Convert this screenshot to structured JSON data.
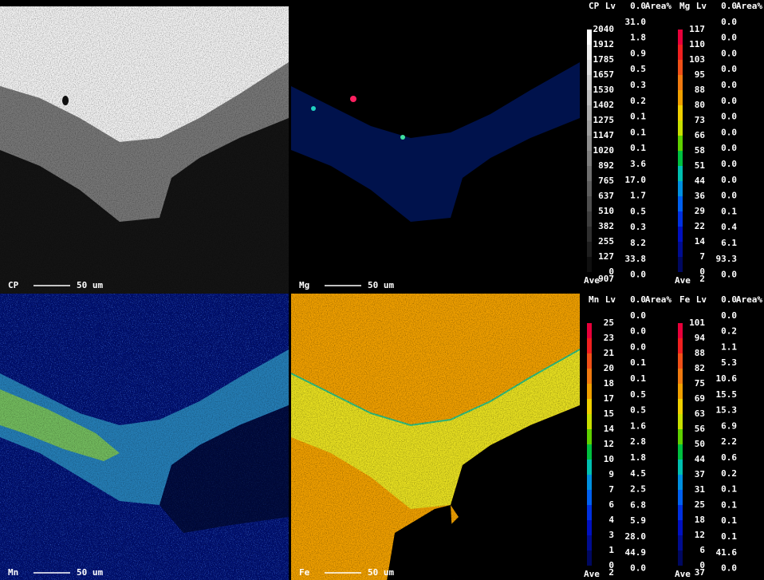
{
  "panels": [
    {
      "label": "CP",
      "scale_bar": "50 um"
    },
    {
      "label": "Mg",
      "scale_bar": "50 um"
    },
    {
      "label": "Mn",
      "scale_bar": "50 um"
    },
    {
      "label": "Fe",
      "scale_bar": "50 um"
    }
  ],
  "scales": [
    {
      "element": "CP",
      "lv_header": "Lv",
      "area_header": "Area%",
      "levels": [
        2040,
        1912,
        1785,
        1657,
        1530,
        1402,
        1275,
        1147,
        1020,
        892,
        765,
        637,
        510,
        382,
        255,
        127,
        0
      ],
      "area": [
        "0.0",
        "31.0",
        "1.8",
        "0.9",
        "0.5",
        "0.3",
        "0.2",
        "0.1",
        "0.1",
        "0.1",
        "3.6",
        "17.0",
        "1.7",
        "0.5",
        "0.3",
        "8.2",
        "33.8",
        "0.0"
      ],
      "ave_label": "Ave",
      "ave": 907
    },
    {
      "element": "Mg",
      "lv_header": "Lv",
      "area_header": "Area%",
      "levels": [
        117,
        110,
        103,
        95,
        88,
        80,
        73,
        66,
        58,
        51,
        44,
        36,
        29,
        22,
        14,
        7,
        0
      ],
      "area": [
        "0.0",
        "0.0",
        "0.0",
        "0.0",
        "0.0",
        "0.0",
        "0.0",
        "0.0",
        "0.0",
        "0.0",
        "0.0",
        "0.0",
        "0.0",
        "0.1",
        "0.4",
        "6.1",
        "93.3",
        "0.0"
      ],
      "ave_label": "Ave",
      "ave": 2
    },
    {
      "element": "Mn",
      "lv_header": "Lv",
      "area_header": "Area%",
      "levels": [
        25,
        23,
        21,
        20,
        18,
        17,
        15,
        14,
        12,
        10,
        9,
        7,
        6,
        4,
        3,
        1,
        0
      ],
      "area": [
        "0.0",
        "0.0",
        "0.0",
        "0.0",
        "0.1",
        "0.1",
        "0.5",
        "0.5",
        "1.6",
        "2.8",
        "1.8",
        "4.5",
        "2.5",
        "6.8",
        "5.9",
        "28.0",
        "44.9",
        "0.0"
      ],
      "ave_label": "Ave",
      "ave": 2
    },
    {
      "element": "Fe",
      "lv_header": "Lv",
      "area_header": "Area%",
      "levels": [
        101,
        94,
        88,
        82,
        75,
        69,
        63,
        56,
        50,
        44,
        37,
        31,
        25,
        18,
        12,
        6,
        0
      ],
      "area": [
        "0.0",
        "0.0",
        "0.2",
        "1.1",
        "5.3",
        "10.6",
        "15.5",
        "15.3",
        "6.9",
        "2.2",
        "0.6",
        "0.2",
        "0.1",
        "0.1",
        "0.1",
        "0.1",
        "41.6",
        "0.0"
      ],
      "ave_label": "Ave",
      "ave": 37
    }
  ]
}
